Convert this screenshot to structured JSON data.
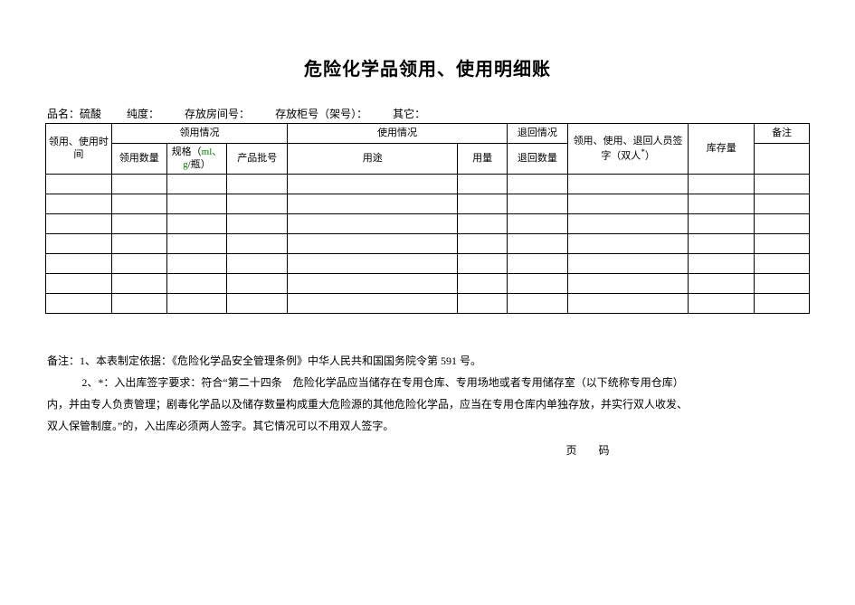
{
  "title": "危险化学品领用、使用明细账",
  "meta": {
    "name_label": "品名：",
    "name_value": "硫酸",
    "purity_label": "纯度：",
    "room_label": "存放房间号：",
    "cabinet_label": "存放柜号（架号）：",
    "other_label": "其它："
  },
  "headers": {
    "time": "领用、使用时间",
    "receive_group": "领用情况",
    "receive_qty": "领用数量",
    "spec_prefix": "规格（",
    "spec_unit": "ml、g",
    "spec_suffix": "/瓶）",
    "batch": "产品批号",
    "use_group": "使用情况",
    "purpose": "用途",
    "use_qty": "用量",
    "return_group": "退回情况",
    "return_qty": "退回数量",
    "sign": "领用、使用、退回人员签字（双人",
    "sign_star": "*",
    "sign_suffix": "）",
    "stock": "库存量",
    "remark": "备注"
  },
  "rows_count": 7,
  "col_widths": {
    "time": 60,
    "recv_qty": 50,
    "spec": 55,
    "batch": 55,
    "purpose": 155,
    "use_qty": 45,
    "return_qty": 55,
    "sign": 110,
    "stock": 60,
    "remark": 50
  },
  "notes": {
    "line1": "备注：1、本表制定依据：《危险化学品安全管理条例》中华人民共和国国务院令第 591 号。",
    "line2a": "2、*：入出库签字要求：符合“第二十四条　危险化学品应当储存在专用仓库、专用场地或者专用储存室（以下统称专用仓库）",
    "line2b": "内，并由专人负责管理；剧毒化学品以及储存数量构成重大危险源的其他危险化学品，应当在专用仓库内单独存放，并实行双人收发、",
    "line2c": "双人保管制度。”的，入出库必须两人签字。其它情况可以不用双人签字。"
  },
  "page_label": "页　码"
}
